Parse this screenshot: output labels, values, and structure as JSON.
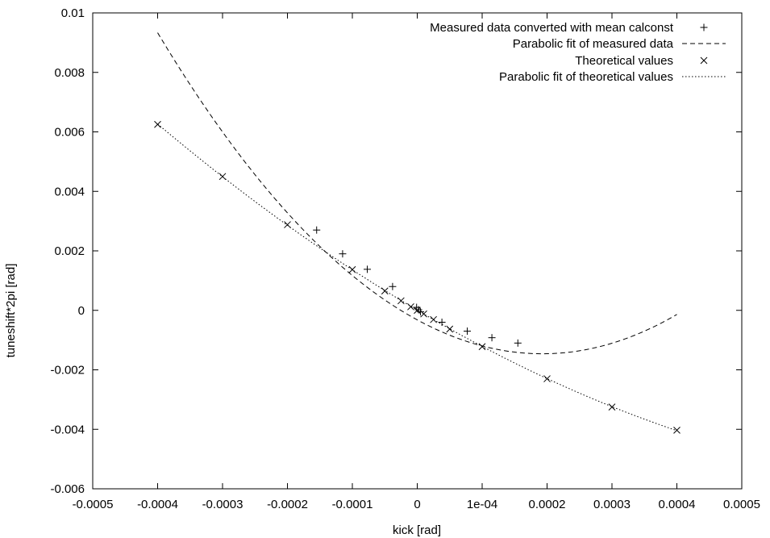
{
  "chart_data": {
    "type": "scatter",
    "xlabel": "kick [rad]",
    "ylabel": "tuneshift*2pi [rad]",
    "xlim": [
      -0.0005,
      0.0005
    ],
    "ylim": [
      -0.006,
      0.01
    ],
    "x_ticks": [
      -0.0005,
      -0.0004,
      -0.0003,
      -0.0002,
      -0.0001,
      0,
      0.0001,
      0.0002,
      0.0003,
      0.0004,
      0.0005
    ],
    "x_tick_labels": [
      "-0.0005",
      "-0.0004",
      "-0.0003",
      "-0.0002",
      "-0.0001",
      "0",
      "1e-04",
      "0.0002",
      "0.0003",
      "0.0004",
      "0.0005"
    ],
    "y_ticks": [
      -0.006,
      -0.004,
      -0.002,
      0,
      0.002,
      0.004,
      0.006,
      0.008,
      0.01
    ],
    "y_tick_labels": [
      "-0.006",
      "-0.004",
      "-0.002",
      "0",
      "0.002",
      "0.004",
      "0.006",
      "0.008",
      "0.01"
    ],
    "grid": false,
    "legend_position": "top-right",
    "series": [
      {
        "name": "Measured data converted with mean calconst",
        "kind": "points",
        "marker": "plus",
        "points": [
          [
            -0.000155,
            0.0027
          ],
          [
            -0.000115,
            0.0019
          ],
          [
            -7.7e-05,
            0.00138
          ],
          [
            -3.8e-05,
            0.0008
          ],
          [
            -1e-06,
            0.0001
          ],
          [
            2e-06,
            2e-05
          ],
          [
            5e-06,
            -5e-05
          ],
          [
            3.8e-05,
            -0.0004
          ],
          [
            7.7e-05,
            -0.0007
          ],
          [
            0.000115,
            -0.00092
          ],
          [
            0.000155,
            -0.0011
          ]
        ]
      },
      {
        "name": "Parabolic fit of measured data",
        "kind": "line",
        "dash": "dashed",
        "samples": [
          [
            -0.0004,
            0.0096
          ],
          [
            -0.0003,
            0.00588
          ],
          [
            -0.0002,
            0.003
          ],
          [
            -0.0001,
            0.00096
          ],
          [
            0.0,
            -0.00024
          ],
          [
            0.0001,
            -0.001
          ],
          [
            0.0002,
            -0.00124
          ],
          [
            0.0003,
            -0.00104
          ],
          [
            0.0004,
            -0.00036
          ]
        ]
      },
      {
        "name": "Theoretical values",
        "kind": "points",
        "marker": "cross",
        "points": [
          [
            -0.0004,
            0.00625
          ],
          [
            -0.0003,
            0.0045
          ],
          [
            -0.0002,
            0.00288
          ],
          [
            -0.0001,
            0.00137
          ],
          [
            -5e-05,
            0.00065
          ],
          [
            -2.5e-05,
            0.00032
          ],
          [
            -1e-05,
            0.00012
          ],
          [
            0.0,
            0.0
          ],
          [
            1e-05,
            -0.00012
          ],
          [
            2.5e-05,
            -0.00031
          ],
          [
            5e-05,
            -0.00063
          ],
          [
            0.0001,
            -0.00122
          ],
          [
            0.0002,
            -0.0023
          ],
          [
            0.0003,
            -0.00325
          ],
          [
            0.0004,
            -0.00403
          ]
        ]
      },
      {
        "name": "Parabolic fit of theoretical values",
        "kind": "line",
        "dash": "dotted",
        "samples": [
          [
            -0.0004,
            0.00625
          ],
          [
            -0.0003,
            0.0045
          ],
          [
            -0.0002,
            0.00288
          ],
          [
            -0.0001,
            0.00137
          ],
          [
            0.0,
            0.0
          ],
          [
            0.0001,
            -0.00122
          ],
          [
            0.0002,
            -0.0023
          ],
          [
            0.0003,
            -0.00325
          ],
          [
            0.0004,
            -0.00403
          ]
        ]
      }
    ]
  }
}
